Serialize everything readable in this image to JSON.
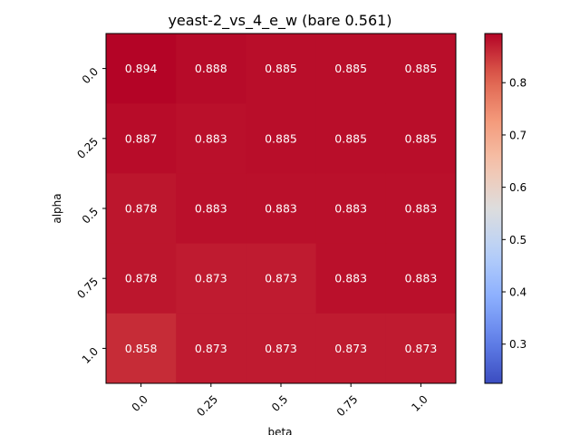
{
  "chart_data": {
    "type": "heatmap",
    "title": "yeast-2_vs_4_e_w (bare 0.561)",
    "xlabel": "beta",
    "ylabel": "alpha",
    "x_categories": [
      "0.0",
      "0.25",
      "0.5",
      "0.75",
      "1.0"
    ],
    "y_categories": [
      "0.0",
      "0.25",
      "0.5",
      "0.75",
      "1.0"
    ],
    "values": [
      [
        0.894,
        0.888,
        0.885,
        0.885,
        0.885
      ],
      [
        0.887,
        0.883,
        0.885,
        0.885,
        0.885
      ],
      [
        0.878,
        0.883,
        0.883,
        0.883,
        0.883
      ],
      [
        0.878,
        0.873,
        0.873,
        0.883,
        0.883
      ],
      [
        0.858,
        0.873,
        0.873,
        0.873,
        0.873
      ]
    ],
    "cell_labels": [
      [
        "0.894",
        "0.888",
        "0.885",
        "0.885",
        "0.885"
      ],
      [
        "0.887",
        "0.883",
        "0.885",
        "0.885",
        "0.885"
      ],
      [
        "0.878",
        "0.883",
        "0.883",
        "0.883",
        "0.883"
      ],
      [
        "0.878",
        "0.873",
        "0.873",
        "0.883",
        "0.883"
      ],
      [
        "0.858",
        "0.873",
        "0.873",
        "0.873",
        "0.873"
      ]
    ],
    "colormap": "coolwarm",
    "colorbar": {
      "range": [
        0.225,
        0.894
      ],
      "ticks": [
        0.3,
        0.4,
        0.5,
        0.6,
        0.7,
        0.8
      ],
      "tick_labels": [
        "0.3",
        "0.4",
        "0.5",
        "0.6",
        "0.7",
        "0.8"
      ],
      "placement": "right"
    },
    "x_tick_rotation": 45,
    "y_tick_rotation": 45,
    "grid": false
  }
}
